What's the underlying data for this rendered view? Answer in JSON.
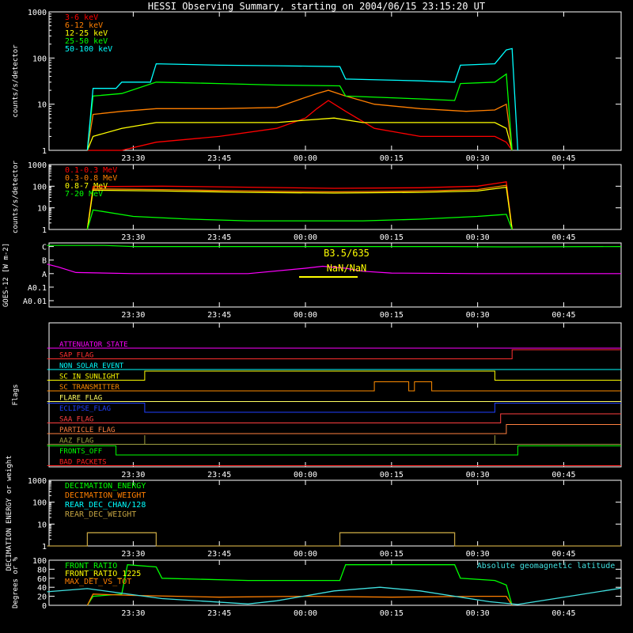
{
  "chart_data": {
    "type": "line",
    "title": "HESSI Observing Summary, starting on 2004/06/15 23:15:20 UT",
    "time_ticks": [
      "23:30",
      "23:45",
      "00:00",
      "00:15",
      "00:30",
      "00:45"
    ],
    "time_range": [
      "23:15:20",
      "00:55:00"
    ],
    "panels": [
      {
        "id": "low_energy",
        "type": "line",
        "ylabel": "counts/s/detector",
        "yscale": "log",
        "ylim": [
          1,
          1000
        ],
        "y_ticks": [
          "1",
          "10",
          "100",
          "1000"
        ],
        "series": [
          {
            "name": "3-6 keV",
            "color": "#ff0000",
            "x": [
              "23:22",
              "23:23",
              "23:28",
              "23:34",
              "23:45",
              "23:55",
              "00:00",
              "00:02",
              "00:04",
              "00:07",
              "00:12",
              "00:20",
              "00:28",
              "00:33",
              "00:35",
              "00:36"
            ],
            "values": [
              1,
              1,
              1,
              1.5,
              2,
              3,
              5,
              8,
              12,
              7,
              3,
              2,
              2,
              2,
              1.5,
              1
            ]
          },
          {
            "name": "6-12 keV",
            "color": "#ff7f00",
            "x": [
              "23:22",
              "23:23",
              "23:28",
              "23:34",
              "23:45",
              "23:55",
              "00:00",
              "00:02",
              "00:04",
              "00:07",
              "00:12",
              "00:20",
              "00:28",
              "00:33",
              "00:35",
              "00:36"
            ],
            "values": [
              1,
              6,
              7,
              8,
              8,
              8.5,
              14,
              17,
              20,
              15,
              10,
              8,
              7,
              7.5,
              10,
              1
            ]
          },
          {
            "name": "12-25 keV",
            "color": "#ffff00",
            "x": [
              "23:22",
              "23:23",
              "23:28",
              "23:34",
              "23:45",
              "23:55",
              "00:00",
              "00:05",
              "00:10",
              "00:20",
              "00:28",
              "00:33",
              "00:35",
              "00:36"
            ],
            "values": [
              1,
              2,
              3,
              4,
              4,
              4,
              4.5,
              5,
              4,
              4,
              4,
              4,
              3,
              1
            ]
          },
          {
            "name": "25-50 keV",
            "color": "#00ff00",
            "x": [
              "23:22",
              "23:23",
              "23:28",
              "23:34",
              "23:45",
              "23:55",
              "00:06",
              "00:07",
              "00:20",
              "00:26",
              "00:27",
              "00:33",
              "00:35",
              "00:36"
            ],
            "values": [
              1,
              15,
              17,
              30,
              28,
              26,
              25,
              15,
              13,
              12,
              28,
              30,
              45,
              1
            ]
          },
          {
            "name": "50-100 keV",
            "color": "#00ffff",
            "x": [
              "23:22",
              "23:23",
              "23:27",
              "23:28",
              "23:33",
              "23:34",
              "23:45",
              "23:55",
              "00:06",
              "00:07",
              "00:20",
              "00:26",
              "00:27",
              "00:33",
              "00:35",
              "00:36",
              "00:37"
            ],
            "values": [
              1,
              22,
              22,
              30,
              30,
              75,
              70,
              68,
              65,
              35,
              32,
              30,
              70,
              75,
              150,
              160,
              1
            ]
          }
        ]
      },
      {
        "id": "high_energy",
        "type": "line",
        "ylabel": "counts/s/detector",
        "yscale": "log",
        "ylim": [
          1,
          1000
        ],
        "y_ticks": [
          "1",
          "10",
          "100",
          "1000"
        ],
        "series": [
          {
            "name": "0.1-0.3 MeV",
            "color": "#ff0000",
            "x": [
              "23:22",
              "23:23",
              "23:35",
              "23:50",
              "00:05",
              "00:20",
              "00:30",
              "00:35",
              "00:36"
            ],
            "values": [
              1,
              95,
              100,
              90,
              80,
              85,
              100,
              160,
              1
            ]
          },
          {
            "name": "0.3-0.8 MeV",
            "color": "#ff7f00",
            "x": [
              "23:22",
              "23:23",
              "23:35",
              "23:50",
              "00:05",
              "00:20",
              "00:30",
              "00:35",
              "00:36"
            ],
            "values": [
              1,
              75,
              70,
              60,
              55,
              60,
              70,
              110,
              1
            ]
          },
          {
            "name": "0.8-7 MeV",
            "color": "#ffff00",
            "x": [
              "23:22",
              "23:23",
              "23:35",
              "23:50",
              "00:05",
              "00:20",
              "00:30",
              "00:35",
              "00:36"
            ],
            "values": [
              1,
              65,
              60,
              52,
              48,
              52,
              60,
              90,
              1
            ]
          },
          {
            "name": "7-20 MeV",
            "color": "#00ff00",
            "x": [
              "23:22",
              "23:23",
              "23:30",
              "23:40",
              "23:50",
              "00:00",
              "00:10",
              "00:20",
              "00:30",
              "00:35",
              "00:36"
            ],
            "values": [
              1,
              8,
              4,
              3,
              2.5,
              2.5,
              2.5,
              3,
              4,
              5,
              1
            ]
          }
        ]
      },
      {
        "id": "goes",
        "type": "line",
        "ylabel": "GOES-12 [W m-2]",
        "yscale": "log",
        "y_ticks": [
          "A0.01",
          "A0.1",
          "A",
          "B",
          "C"
        ],
        "annotations": [
          "B3.5/635",
          "NaN/NaN"
        ],
        "series": [
          {
            "name": "GOES long",
            "color": "#00ff00",
            "x": [
              "23:15",
              "23:25",
              "23:30",
              "00:00",
              "00:10",
              "00:25",
              "00:35",
              "00:55"
            ],
            "values": [
              1.2e-06,
              1.2e-06,
              1e-06,
              1e-06,
              1e-06,
              1e-06,
              9.5e-07,
              1e-06
            ]
          },
          {
            "name": "GOES short",
            "color": "#ff00ff",
            "x": [
              "23:15",
              "23:17",
              "23:20",
              "23:30",
              "23:50",
              "00:00",
              "00:03",
              "00:07",
              "00:10",
              "00:15",
              "00:30",
              "00:55"
            ],
            "values": [
              5e-08,
              3e-08,
              1.2e-08,
              1e-08,
              1e-08,
              2.5e-08,
              3.5e-08,
              2.5e-08,
              1.5e-08,
              1.1e-08,
              1e-08,
              1e-08
            ]
          }
        ]
      },
      {
        "id": "flags",
        "type": "line",
        "ylabel": "Flags",
        "series": [
          {
            "name": "ATTENUATOR_STATE",
            "color": "#ff00ff",
            "x": [
              "23:15",
              "00:55"
            ],
            "values": [
              0,
              0
            ]
          },
          {
            "name": "SAP_FLAG",
            "color": "#ff3030",
            "x": [
              "23:15",
              "00:36",
              "00:36",
              "00:55"
            ],
            "values": [
              0,
              0,
              1,
              1
            ]
          },
          {
            "name": "NON_SOLAR_EVENT",
            "color": "#00ffff",
            "x": [
              "23:15",
              "00:55"
            ],
            "values": [
              0,
              0
            ]
          },
          {
            "name": "SC_IN_SUNLIGHT",
            "color": "#ffff00",
            "x": [
              "23:15",
              "23:32",
              "23:32",
              "00:33",
              "00:33",
              "00:55"
            ],
            "values": [
              0,
              0,
              1,
              1,
              0,
              0
            ]
          },
          {
            "name": "SC_TRANSMITTER",
            "color": "#ff8c00",
            "x": [
              "23:15",
              "00:12",
              "00:12",
              "00:18",
              "00:18",
              "00:19",
              "00:19",
              "00:22",
              "00:22",
              "00:55"
            ],
            "values": [
              0,
              0,
              1,
              1,
              0,
              0,
              1,
              1,
              0,
              0
            ]
          },
          {
            "name": "FLARE_FLAG",
            "color": "#ffff60",
            "x": [
              "23:15",
              "00:55"
            ],
            "values": [
              0,
              0
            ]
          },
          {
            "name": "ECLIPSE_FLAG",
            "color": "#2040ff",
            "x": [
              "23:15",
              "23:32",
              "23:32",
              "00:33",
              "00:33",
              "00:55"
            ],
            "values": [
              1,
              1,
              0,
              0,
              1,
              1
            ]
          },
          {
            "name": "SAA_FLAG",
            "color": "#ff4040",
            "x": [
              "23:15",
              "00:34",
              "00:34",
              "00:55"
            ],
            "values": [
              0,
              0,
              1,
              1
            ]
          },
          {
            "name": "PARTICLE_FLAG",
            "color": "#ff8040",
            "x": [
              "23:15",
              "00:35",
              "00:35",
              "00:55"
            ],
            "values": [
              0,
              0,
              1,
              1
            ]
          },
          {
            "name": "AAZ_FLAG",
            "color": "#a0a040",
            "x": [
              "23:15",
              "23:32",
              "23:32",
              "23:32",
              "00:33",
              "00:33",
              "00:33",
              "00:55"
            ],
            "values": [
              0,
              0,
              1,
              0,
              0,
              1,
              0,
              0
            ]
          },
          {
            "name": "FRONTS_OFF",
            "color": "#00ff00",
            "x": [
              "23:15",
              "23:27",
              "23:27",
              "00:37",
              "00:37",
              "00:55"
            ],
            "values": [
              1,
              1,
              0,
              0,
              1,
              1
            ]
          },
          {
            "name": "BAD_PACKETS",
            "color": "#ff2020",
            "x": [
              "23:15",
              "00:55"
            ],
            "values": [
              0,
              0
            ]
          }
        ]
      },
      {
        "id": "decimation",
        "type": "line",
        "ylabel": "DECIMATION ENERGY or weight",
        "yscale": "log",
        "ylim": [
          1,
          1000
        ],
        "y_ticks": [
          "1",
          "10",
          "100",
          "1000"
        ],
        "series": [
          {
            "name": "DECIMATION_ENERGY",
            "color": "#00ff00",
            "x": [],
            "values": []
          },
          {
            "name": "DECIMATION_WEIGHT",
            "color": "#ff7f00",
            "x": [],
            "values": []
          },
          {
            "name": "REAR_DEC_CHAN/128",
            "color": "#00ffff",
            "x": [],
            "values": []
          },
          {
            "name": "REAR_DEC_WEIGHT",
            "color": "#c0a040",
            "x": [
              "23:15",
              "23:22",
              "23:22",
              "23:34",
              "23:34",
              "00:06",
              "00:06",
              "00:26",
              "00:26",
              "00:55"
            ],
            "values": [
              1,
              1,
              4,
              4,
              1,
              1,
              4,
              4,
              1,
              1
            ]
          }
        ]
      },
      {
        "id": "ratios",
        "type": "line",
        "ylabel": "Degrees or %",
        "ylim": [
          0,
          100
        ],
        "y_ticks": [
          "0",
          "20",
          "40",
          "60",
          "80",
          "100"
        ],
        "annotations": [
          "Absolute geomagnetic latitude"
        ],
        "series": [
          {
            "name": "FRONT_RATIO",
            "color": "#00ff00",
            "x": [
              "23:22",
              "23:23",
              "23:28",
              "23:29",
              "23:34",
              "23:35",
              "23:50",
              "00:06",
              "00:07",
              "00:26",
              "00:27",
              "00:33",
              "00:35",
              "00:36"
            ],
            "values": [
              0,
              20,
              25,
              90,
              85,
              60,
              55,
              55,
              90,
              90,
              60,
              55,
              45,
              0
            ]
          },
          {
            "name": "FRONT_RATIO_1225",
            "color": "#ffff00",
            "x": [],
            "values": []
          },
          {
            "name": "MAX_DET_VS_TOT",
            "color": "#ff7f00",
            "x": [
              "23:22",
              "23:23",
              "23:30",
              "23:45",
              "00:00",
              "00:15",
              "00:30",
              "00:35",
              "00:36"
            ],
            "values": [
              0,
              25,
              22,
              18,
              20,
              18,
              20,
              20,
              0
            ]
          },
          {
            "name": "Absolute geomagnetic latitude",
            "color": "#40e0e0",
            "x": [
              "23:15",
              "23:22",
              "23:35",
              "23:50",
              "23:55",
              "00:05",
              "00:13",
              "00:20",
              "00:32",
              "00:37",
              "00:46",
              "00:55"
            ],
            "values": [
              30,
              37,
              15,
              3,
              10,
              32,
              40,
              32,
              8,
              2,
              20,
              38
            ]
          }
        ]
      }
    ]
  }
}
